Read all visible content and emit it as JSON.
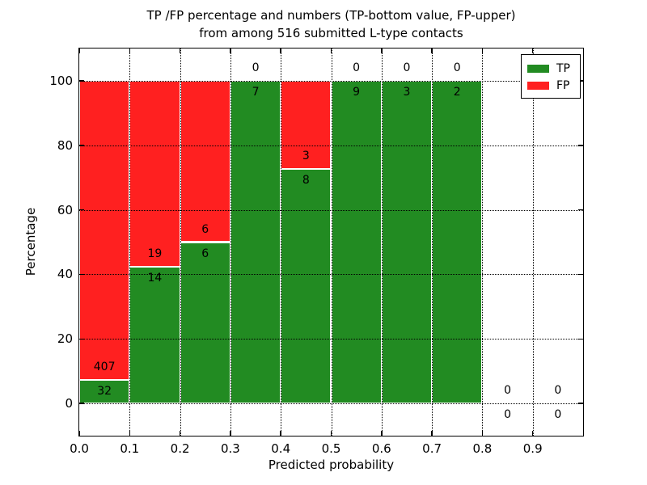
{
  "figure": {
    "title_line1": "TP /FP percentage and numbers (TP-bottom value, FP-upper)",
    "title_line2": "from among 516 submitted L-type contacts",
    "xlabel": "Predicted probability",
    "ylabel": "Percentage",
    "total_submitted": 516
  },
  "legend": {
    "items": [
      {
        "label": "TP",
        "color": "#228B22"
      },
      {
        "label": "FP",
        "color": "#FF2020"
      }
    ]
  },
  "chart_data": {
    "type": "bar",
    "stacked": true,
    "title": "TP /FP percentage and numbers (TP-bottom value, FP-upper) from among 516 submitted L-type contacts",
    "xlabel": "Predicted probability",
    "ylabel": "Percentage",
    "xlim": [
      0.0,
      1.0
    ],
    "ylim": [
      -10,
      110
    ],
    "grid": true,
    "legend_position": "upper right",
    "x_tick_values": [
      0.0,
      0.1,
      0.2,
      0.3,
      0.4,
      0.5,
      0.6,
      0.7,
      0.8,
      0.9
    ],
    "x_tick_labels": [
      "0.0",
      "0.1",
      "0.2",
      "0.3",
      "0.4",
      "0.5",
      "0.6",
      "0.7",
      "0.8",
      "0.9"
    ],
    "y_tick_values": [
      0,
      20,
      40,
      60,
      80,
      100
    ],
    "y_tick_labels": [
      "0",
      "20",
      "40",
      "60",
      "80",
      "100"
    ],
    "series": [
      {
        "name": "TP",
        "color": "#228B22"
      },
      {
        "name": "FP",
        "color": "#FF2020"
      }
    ],
    "bins": [
      {
        "range": [
          0.0,
          0.1
        ],
        "tp": 32,
        "fp": 407
      },
      {
        "range": [
          0.1,
          0.2
        ],
        "tp": 14,
        "fp": 19
      },
      {
        "range": [
          0.2,
          0.3
        ],
        "tp": 6,
        "fp": 6
      },
      {
        "range": [
          0.3,
          0.4
        ],
        "tp": 7,
        "fp": 0
      },
      {
        "range": [
          0.4,
          0.5
        ],
        "tp": 8,
        "fp": 3
      },
      {
        "range": [
          0.5,
          0.6
        ],
        "tp": 9,
        "fp": 0
      },
      {
        "range": [
          0.6,
          0.7
        ],
        "tp": 3,
        "fp": 0
      },
      {
        "range": [
          0.7,
          0.8
        ],
        "tp": 2,
        "fp": 0
      },
      {
        "range": [
          0.8,
          0.9
        ],
        "tp": 0,
        "fp": 0
      },
      {
        "range": [
          0.9,
          1.0
        ],
        "tp": 0,
        "fp": 0
      }
    ]
  }
}
